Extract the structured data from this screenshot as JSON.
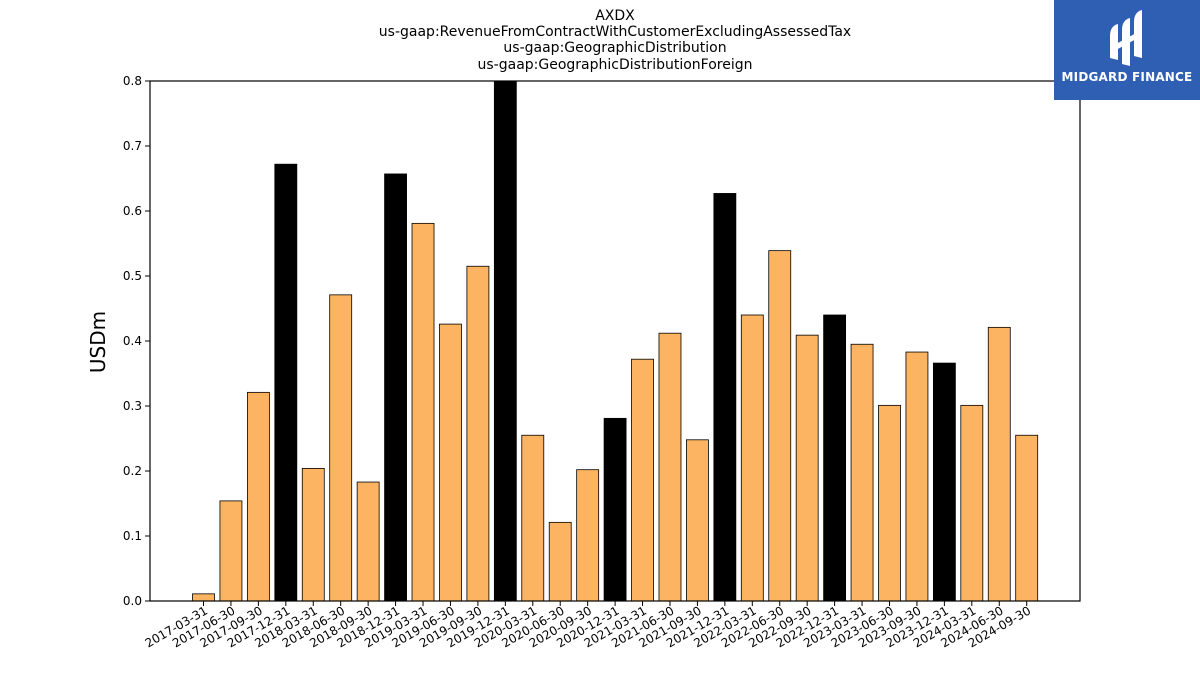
{
  "logo": {
    "text": "MIDGARD FINANCE",
    "icon": "midgard-finance-logo-icon",
    "background": "#2f5fb3"
  },
  "chart_data": {
    "type": "bar",
    "title": [
      "AXDX",
      "us-gaap:RevenueFromContractWithCustomerExcludingAssessedTax",
      "us-gaap:GeographicDistribution",
      "us-gaap:GeographicDistributionForeign"
    ],
    "xlabel": "",
    "ylabel": "USDm",
    "ylim": [
      0,
      0.8
    ],
    "yticks": [
      "0.0",
      "0.1",
      "0.2",
      "0.3",
      "0.4",
      "0.5",
      "0.6",
      "0.7",
      "0.8"
    ],
    "grid": false,
    "colors": {
      "quarter": "#fdb462",
      "year_end": "#000000",
      "edge": "#000000"
    },
    "categories": [
      "2017-03-31",
      "2017-06-30",
      "2017-09-30",
      "2017-12-31",
      "2018-03-31",
      "2018-06-30",
      "2018-09-30",
      "2018-12-31",
      "2019-03-31",
      "2019-06-30",
      "2019-09-30",
      "2019-12-31",
      "2020-03-31",
      "2020-06-30",
      "2020-09-30",
      "2020-12-31",
      "2021-03-31",
      "2021-06-30",
      "2021-09-30",
      "2021-12-31",
      "2022-03-31",
      "2022-06-30",
      "2022-09-30",
      "2022-12-31",
      "2023-03-31",
      "2023-06-30",
      "2023-09-30",
      "2023-12-31",
      "2024-03-31",
      "2024-06-30",
      "2024-09-30"
    ],
    "values": [
      0.011,
      0.154,
      0.321,
      0.672,
      0.204,
      0.471,
      0.183,
      0.657,
      0.581,
      0.426,
      0.515,
      0.805,
      0.255,
      0.121,
      0.202,
      0.281,
      0.372,
      0.412,
      0.248,
      0.627,
      0.44,
      0.539,
      0.409,
      0.44,
      0.395,
      0.301,
      0.383,
      0.366,
      0.301,
      0.421,
      0.255
    ],
    "highlight": [
      false,
      false,
      false,
      true,
      false,
      false,
      false,
      true,
      false,
      false,
      false,
      true,
      false,
      false,
      false,
      true,
      false,
      false,
      false,
      true,
      false,
      false,
      false,
      true,
      false,
      false,
      false,
      true,
      false,
      false,
      false
    ]
  }
}
